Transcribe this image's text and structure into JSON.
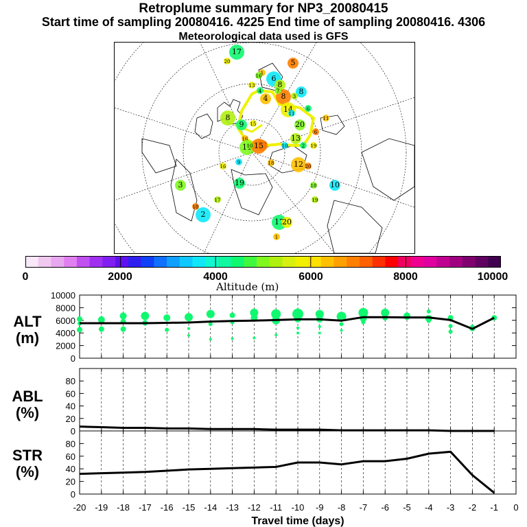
{
  "title": {
    "line1": "Retroplume summary for NP3_20080415",
    "line2": "Start time of sampling 20080416.  4225     End time of sampling 20080416.  4306",
    "line3": "Meteorological data used is GFS"
  },
  "colorbar": {
    "label": "Altitude (m)",
    "ticks": [
      "0",
      "2000",
      "4000",
      "6000",
      "8000",
      "10000"
    ],
    "colors": [
      "#f8e8f8",
      "#f0c8f0",
      "#e8a8f0",
      "#e080f0",
      "#c050f0",
      "#a030f0",
      "#8020f0",
      "#6010f0",
      "#3020f0",
      "#1040f8",
      "#1070ff",
      "#10a0ff",
      "#10c8ff",
      "#10e8f8",
      "#10f8d0",
      "#10f8a0",
      "#10f870",
      "#40f840",
      "#80f820",
      "#b0f010",
      "#d8f010",
      "#f0f000",
      "#ffe000",
      "#ffc000",
      "#ffa000",
      "#ff8000",
      "#ff6000",
      "#ff3000",
      "#ff0000",
      "#f00060",
      "#f00090",
      "#e000a0",
      "#c00090",
      "#a00080",
      "#800070",
      "#600060",
      "#400050"
    ]
  },
  "map_labels": [
    "17",
    "20",
    "1",
    "5",
    "16",
    "6",
    "8",
    "4",
    "13",
    "4",
    "8",
    "7",
    "8",
    "3",
    "6",
    "14",
    "11",
    "6",
    "20",
    "11",
    "8",
    "9",
    "15",
    "16",
    "12",
    "11",
    "10",
    "13",
    "2",
    "19",
    "12",
    "20",
    "18",
    "10",
    "19",
    "17",
    "20",
    "1",
    "18",
    "3",
    "2",
    "17",
    "19",
    "16",
    "18",
    "15",
    "10",
    "9"
  ],
  "chart_data": [
    {
      "type": "scatter+line",
      "row_label": [
        "ALT",
        "(m)"
      ],
      "ylim": [
        0,
        10000
      ],
      "yticks": [
        "0",
        "2000",
        "4000",
        "6000",
        "8000",
        "10000"
      ],
      "x": [
        -20,
        -19,
        -18,
        -17,
        -16,
        -15,
        -14,
        -13,
        -12,
        -11,
        -10,
        -9,
        -8,
        -7,
        -6,
        -5,
        -4,
        -3,
        -2,
        -1
      ],
      "median_line": [
        5550,
        5550,
        5550,
        5550,
        5600,
        5650,
        5800,
        5900,
        5950,
        6050,
        6150,
        6150,
        5950,
        6500,
        6500,
        6450,
        6450,
        6050,
        4650,
        6400
      ],
      "point_color": "#10f870",
      "points": [
        [
          -20,
          6200,
          4
        ],
        [
          -20,
          5500,
          3
        ],
        [
          -20,
          4500,
          4
        ],
        [
          -19,
          6100,
          5
        ],
        [
          -19,
          4600,
          4
        ],
        [
          -18,
          6700,
          5
        ],
        [
          -18,
          5800,
          4
        ],
        [
          -18,
          4600,
          4
        ],
        [
          -17,
          6700,
          6
        ],
        [
          -17,
          5600,
          4
        ],
        [
          -16,
          6400,
          5
        ],
        [
          -16,
          4500,
          3
        ],
        [
          -15,
          6500,
          6
        ],
        [
          -15,
          4700,
          2
        ],
        [
          -15,
          3600,
          2
        ],
        [
          -14,
          7000,
          6
        ],
        [
          -14,
          5400,
          3
        ],
        [
          -14,
          3000,
          2
        ],
        [
          -13,
          6800,
          4
        ],
        [
          -13,
          5700,
          3
        ],
        [
          -13,
          3100,
          2
        ],
        [
          -12,
          7200,
          6
        ],
        [
          -12,
          6400,
          5
        ],
        [
          -12,
          3200,
          2
        ],
        [
          -11,
          7000,
          7
        ],
        [
          -11,
          6000,
          6
        ],
        [
          -11,
          3700,
          2
        ],
        [
          -10,
          7000,
          8
        ],
        [
          -10,
          6200,
          5
        ],
        [
          -10,
          4800,
          2
        ],
        [
          -10,
          4000,
          2
        ],
        [
          -9,
          7000,
          6
        ],
        [
          -9,
          6200,
          5
        ],
        [
          -9,
          5000,
          2
        ],
        [
          -9,
          4000,
          2
        ],
        [
          -8,
          6600,
          7
        ],
        [
          -8,
          5400,
          3
        ],
        [
          -8,
          4400,
          2
        ],
        [
          -7,
          7200,
          7
        ],
        [
          -7,
          6300,
          5
        ],
        [
          -7,
          5700,
          3
        ],
        [
          -6,
          7200,
          6
        ],
        [
          -6,
          6400,
          4
        ],
        [
          -5,
          6700,
          5
        ],
        [
          -5,
          6500,
          4
        ],
        [
          -4,
          7400,
          3
        ],
        [
          -4,
          6300,
          5
        ],
        [
          -4,
          5900,
          3
        ],
        [
          -3,
          6400,
          4
        ],
        [
          -3,
          5100,
          3
        ],
        [
          -3,
          4200,
          3
        ],
        [
          -2,
          5000,
          3
        ],
        [
          -2,
          4700,
          4
        ],
        [
          -1,
          6400,
          4
        ]
      ],
      "xlim": [
        -20,
        0
      ]
    },
    {
      "type": "line",
      "row_label": [
        "ABL",
        "(%)"
      ],
      "ylim": [
        0,
        100
      ],
      "yticks": [
        "0",
        "20",
        "40",
        "60",
        "80"
      ],
      "x": [
        -20,
        -19,
        -18,
        -17,
        -16,
        -15,
        -14,
        -13,
        -12,
        -11,
        -10,
        -9,
        -8,
        -7,
        -6,
        -5,
        -4,
        -3,
        -2,
        -1
      ],
      "values": [
        7,
        6,
        5,
        5,
        4,
        4,
        3,
        3,
        3,
        2,
        2,
        2,
        1,
        1,
        1,
        1,
        1,
        0,
        0,
        0
      ],
      "xlim": [
        -20,
        0
      ]
    },
    {
      "type": "line",
      "row_label": [
        "STR",
        "(%)"
      ],
      "ylim": [
        0,
        100
      ],
      "yticks": [
        "0",
        "20",
        "40",
        "60",
        "80"
      ],
      "x": [
        -20,
        -19,
        -18,
        -17,
        -16,
        -15,
        -14,
        -13,
        -12,
        -11,
        -10,
        -9,
        -8,
        -7,
        -6,
        -5,
        -4,
        -3,
        -2,
        -1
      ],
      "values": [
        32,
        33,
        34,
        35,
        37,
        39,
        40,
        41,
        42,
        43,
        50,
        50,
        47,
        52,
        52,
        56,
        64,
        67,
        30,
        2
      ],
      "xlim": [
        -20,
        0
      ],
      "xticks": [
        "-20",
        "-19",
        "-18",
        "-17",
        "-16",
        "-15",
        "-14",
        "-13",
        "-12",
        "-11",
        "-10",
        "-9",
        "-8",
        "-7",
        "-6",
        "-5",
        "-4",
        "-3",
        "-2",
        "-1",
        "0"
      ],
      "xlabel": "Travel time (days)"
    }
  ]
}
